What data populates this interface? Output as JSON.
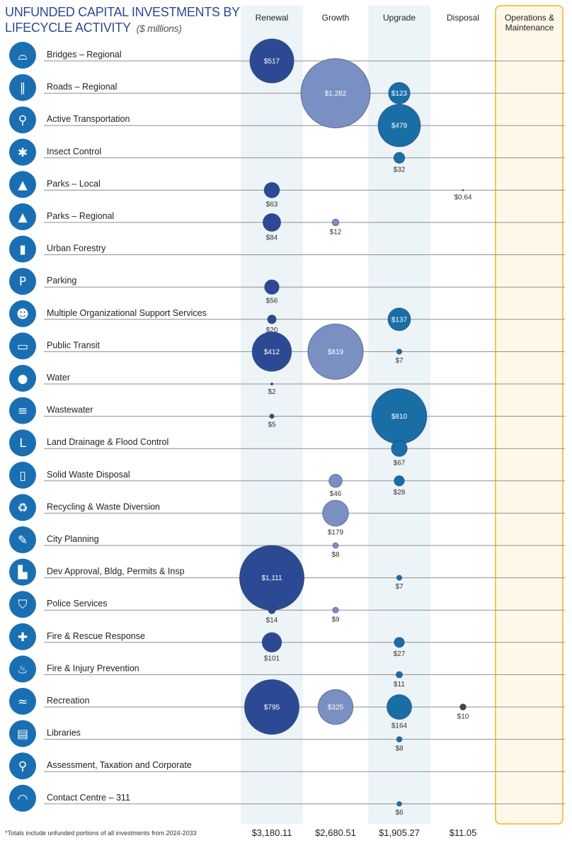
{
  "title": {
    "line1": "UNFUNDED CAPITAL INVESTMENTS BY",
    "line2": "LIFECYCLE ACTIVITY",
    "unit": "($ millions)"
  },
  "footnote": "*Totals include unfunded portions of all investments from 2024-2033",
  "colors": {
    "Renewal": "#2c4a94",
    "Growth": "#7a8fc2",
    "Upgrade": "#1a6ea6",
    "Disposal": "#444444",
    "icon": "#1a6fb3",
    "band": "#edf4f8",
    "om_border": "#f5b225",
    "om_fill": "#fff8e8"
  },
  "chart_data": {
    "type": "bubble",
    "title": "UNFUNDED CAPITAL INVESTMENTS BY LIFECYCLE ACTIVITY ($ millions)",
    "columns": [
      "Renewal",
      "Growth",
      "Upgrade",
      "Disposal",
      "Operations & Maintenance"
    ],
    "totals": [
      "$3,180.11",
      "$2,680.51",
      "$1,905.27",
      "$11.05",
      ""
    ],
    "rows": [
      {
        "name": "Bridges – Regional",
        "icon": "pedestrian-bridge-icon",
        "values": {
          "Renewal": 517
        }
      },
      {
        "name": "Roads – Regional",
        "icon": "road-icon",
        "values": {
          "Growth": 1282,
          "Upgrade": 123
        }
      },
      {
        "name": "Active Transportation",
        "icon": "bicycle-icon",
        "values": {
          "Upgrade": 479
        }
      },
      {
        "name": "Insect Control",
        "icon": "insect-icon",
        "values": {
          "Upgrade": 32
        }
      },
      {
        "name": "Parks – Local",
        "icon": "tree-icon",
        "values": {
          "Renewal": 63,
          "Disposal": 0.64
        }
      },
      {
        "name": "Parks – Regional",
        "icon": "tree-icon",
        "values": {
          "Renewal": 84,
          "Growth": 12
        }
      },
      {
        "name": "Urban Forestry",
        "icon": "building-tree-icon",
        "values": {}
      },
      {
        "name": "Parking",
        "icon": "parking-icon",
        "values": {
          "Renewal": 56
        }
      },
      {
        "name": "Multiple Organizational Support Services",
        "icon": "people-icon",
        "values": {
          "Renewal": 20,
          "Upgrade": 137
        }
      },
      {
        "name": "Public Transit",
        "icon": "bus-icon",
        "values": {
          "Renewal": 412,
          "Growth": 819,
          "Upgrade": 7
        }
      },
      {
        "name": "Water",
        "icon": "water-drop-icon",
        "values": {
          "Renewal": 2
        }
      },
      {
        "name": "Wastewater",
        "icon": "wastewater-icon",
        "values": {
          "Renewal": 5,
          "Upgrade": 810
        }
      },
      {
        "name": "Land Drainage & Flood Control",
        "icon": "drain-pipe-icon",
        "values": {
          "Upgrade": 67
        }
      },
      {
        "name": "Solid Waste Disposal",
        "icon": "garbage-bin-icon",
        "values": {
          "Growth": 46,
          "Upgrade": 28
        }
      },
      {
        "name": "Recycling & Waste Diversion",
        "icon": "recycle-icon",
        "values": {
          "Growth": 179
        }
      },
      {
        "name": "City Planning",
        "icon": "pencil-icon",
        "values": {
          "Growth": 8
        }
      },
      {
        "name": "Dev Approval, Bldg, Permits & Insp",
        "icon": "building-house-icon",
        "values": {
          "Renewal": 1111,
          "Upgrade": 7
        }
      },
      {
        "name": "Police Services",
        "icon": "police-badge-icon",
        "values": {
          "Renewal": 14,
          "Growth": 9
        }
      },
      {
        "name": "Fire & Rescue Response",
        "icon": "fire-rescue-icon",
        "values": {
          "Renewal": 101,
          "Upgrade": 27
        }
      },
      {
        "name": "Fire & Injury Prevention",
        "icon": "flame-icon",
        "values": {
          "Upgrade": 11
        }
      },
      {
        "name": "Recreation",
        "icon": "swimmer-icon",
        "values": {
          "Renewal": 795,
          "Growth": 325,
          "Upgrade": 164,
          "Disposal": 10
        }
      },
      {
        "name": "Libraries",
        "icon": "book-icon",
        "values": {
          "Upgrade": 8
        }
      },
      {
        "name": "Assessment, Taxation and Corporate",
        "icon": "magnifier-icon",
        "values": {}
      },
      {
        "name": "Contact Centre – 311",
        "icon": "headset-icon",
        "values": {
          "Upgrade": 6
        }
      }
    ]
  }
}
